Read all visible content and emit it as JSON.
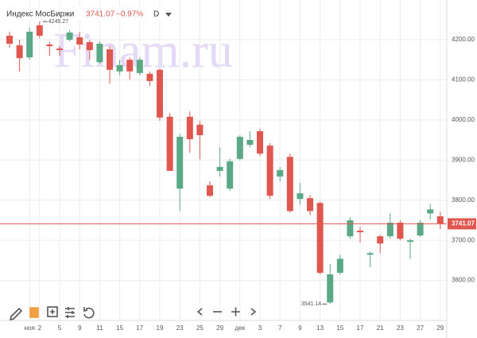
{
  "chart_data": {
    "type": "candlestick",
    "title": "Индекс МосБиржи",
    "change": "−0.97%",
    "interval": "D",
    "watermark": "Finam.ru",
    "categories": [
      null,
      null,
      "ноя",
      "2",
      null,
      "5",
      null,
      "9",
      null,
      "11",
      null,
      "15",
      null,
      "17",
      null,
      "19",
      null,
      "23",
      null,
      "25",
      null,
      "29",
      null,
      "дек",
      null,
      "3",
      null,
      "7",
      null,
      "9",
      null,
      "13",
      null,
      "15",
      null,
      "17",
      null,
      "21",
      null,
      "23",
      null,
      "27",
      null,
      "29"
    ],
    "open": [
      4210,
      4186,
      4156,
      4236,
      4188,
      4178,
      4200,
      4206,
      4194,
      4144,
      4176,
      4121,
      4150,
      4117,
      4115,
      4125,
      4008,
      3829,
      4008,
      3988,
      3837,
      3873,
      3829,
      3903,
      3938,
      3972,
      3936,
      3859,
      3908,
      3803,
      3805,
      3793,
      3545,
      3619,
      3710,
      3724,
      3664,
      3710,
      3710,
      3744,
      3696,
      3712,
      3767,
      3760
    ],
    "high": [
      4220,
      4200,
      4230,
      4245.27,
      4194,
      4184,
      4224,
      4220,
      4200,
      4196,
      4184,
      4150,
      4156,
      4156,
      4121,
      4129,
      4017,
      3966,
      4021,
      3998,
      3847,
      3932,
      3903,
      3962,
      3972,
      3978,
      3942,
      3883,
      3916,
      3843,
      3813,
      3797,
      3641,
      3664,
      3758,
      3734,
      3672,
      3714,
      3767,
      3750,
      3704,
      3750,
      3791,
      3771
    ],
    "low": [
      4180,
      4121,
      4150,
      4204,
      4160,
      4160,
      4196,
      4176,
      4150,
      4140,
      4091,
      4111,
      4101,
      4111,
      4085,
      3998,
      3873,
      3773,
      3918,
      3902,
      3807,
      3859,
      3823,
      3899,
      3932,
      3910,
      3803,
      3847,
      3769,
      3789,
      3763,
      3615,
      3541.14,
      3615,
      3704,
      3694,
      3633,
      3668,
      3704,
      3700,
      3654,
      3708,
      3751,
      3728
    ],
    "close": [
      4190,
      4154,
      4220,
      4210,
      4184,
      4174,
      4218,
      4188,
      4174,
      4190,
      4125,
      4137,
      4121,
      4150,
      4097,
      4006,
      3873,
      3958,
      3952,
      3962,
      3811,
      3883,
      3897,
      3958,
      3950,
      3916,
      3811,
      3875,
      3773,
      3817,
      3773,
      3619,
      3615,
      3654,
      3750,
      3720,
      3668,
      3692,
      3744,
      3704,
      3700,
      3744,
      3777,
      3741.07
    ],
    "up_color": "#5aa886",
    "down_color": "#e0574f",
    "ylim": [
      3506,
      4299
    ],
    "yticks": [
      {
        "value": 3600,
        "label": "3600.00"
      },
      {
        "value": 3700,
        "label": "3700.00"
      },
      {
        "value": 3800,
        "label": "3800.00"
      },
      {
        "value": 3900,
        "label": "3900.00"
      },
      {
        "value": 4000,
        "label": "4000.00"
      },
      {
        "value": 4100,
        "label": "4100.00"
      },
      {
        "value": 4200,
        "label": "4200.00"
      }
    ],
    "grid": true
  }
}
